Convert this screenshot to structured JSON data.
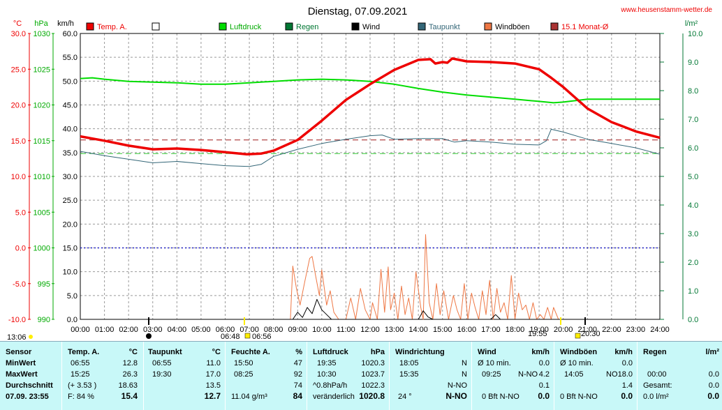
{
  "header": {
    "title": "Dienstag, 07.09.2021",
    "site": "www.heusenstamm-wetter.de"
  },
  "axes": {
    "celsius_unit": "°C",
    "hpa_unit": "hPa",
    "kmh_unit": "km/h",
    "rain_unit": "l/m²",
    "celsius_ticks": [
      "30.0",
      "25.0",
      "20.0",
      "15.0",
      "10.0",
      "5.0",
      "0.0",
      "-5.0",
      "-10.0"
    ],
    "hpa_ticks": [
      "1030",
      "1025",
      "1020",
      "1015",
      "1010",
      "1005",
      "1000",
      "995",
      "990"
    ],
    "kmh_ticks": [
      "60.0",
      "55.0",
      "50.0",
      "45.0",
      "40.0",
      "35.0",
      "30.0",
      "25.0",
      "20.0",
      "15.0",
      "10.0",
      "5.0",
      "0.0"
    ],
    "rain_ticks": [
      "10.0",
      "9.0",
      "8.0",
      "7.0",
      "6.0",
      "5.0",
      "4.0",
      "3.0",
      "2.0",
      "1.0",
      "0.0"
    ],
    "time_ticks": [
      "00:00",
      "01:00",
      "02:00",
      "03:00",
      "04:00",
      "05:00",
      "06:00",
      "07:00",
      "08:00",
      "09:00",
      "10:00",
      "11:00",
      "12:00",
      "13:00",
      "14:00",
      "15:00",
      "16:00",
      "17:00",
      "18:00",
      "19:00",
      "20:00",
      "21:00",
      "22:00",
      "23:00",
      "24:00"
    ],
    "sun_moon": [
      "13:06",
      "06:48",
      "06:56",
      "19:55",
      "20:30"
    ]
  },
  "legend": [
    {
      "label": "Temp. A.",
      "color": "#ee0000"
    },
    {
      "label": "",
      "color": "#ffffff"
    },
    {
      "label": "Luftdruck",
      "color": "#00dd00"
    },
    {
      "label": "Regen",
      "color": "#007733"
    },
    {
      "label": "Wind",
      "color": "#000000"
    },
    {
      "label": "Taupunkt",
      "color": "#336677"
    },
    {
      "label": "Windböen",
      "color": "#ee7744"
    },
    {
      "label": "15.1 Monat-Ø",
      "color": "#aa3333"
    }
  ],
  "chart_data": {
    "type": "line",
    "title": "Dienstag, 07.09.2021",
    "x_unit": "hour",
    "xlim": [
      0,
      24
    ],
    "series": [
      {
        "name": "Temp. A.",
        "axis": "celsius",
        "ylim": [
          -10,
          30
        ],
        "color": "#ee0000",
        "x": [
          0,
          1,
          2,
          3,
          4,
          5,
          6,
          6.9,
          7.5,
          8,
          9,
          10,
          11,
          12,
          13,
          14,
          14.5,
          14.7,
          15,
          15.2,
          15.4,
          16,
          17,
          18,
          19,
          19.5,
          20,
          21,
          22,
          23,
          24
        ],
        "y": [
          15.6,
          15.0,
          14.3,
          13.8,
          13.9,
          13.7,
          13.4,
          13.1,
          13.2,
          13.6,
          15.1,
          17.8,
          20.7,
          22.9,
          24.9,
          26.3,
          26.4,
          25.8,
          26.0,
          25.9,
          26.5,
          26.1,
          26.0,
          25.8,
          25.0,
          23.8,
          22.5,
          19.5,
          17.6,
          16.3,
          15.4
        ]
      },
      {
        "name": "Taupunkt",
        "axis": "celsius",
        "ylim": [
          -10,
          30
        ],
        "color": "#336677",
        "x": [
          0,
          1,
          2,
          3,
          4,
          5,
          6,
          7,
          7.5,
          8,
          9,
          10,
          11,
          12,
          12.5,
          13,
          14,
          15,
          15.5,
          16,
          17,
          18,
          19,
          19.3,
          19.5,
          20,
          21,
          22,
          23,
          24
        ],
        "y": [
          13.5,
          12.9,
          12.4,
          11.9,
          12.1,
          11.8,
          11.5,
          11.4,
          11.7,
          12.8,
          13.8,
          14.6,
          15.2,
          15.7,
          15.8,
          15.2,
          15.3,
          15.3,
          14.8,
          15.0,
          14.8,
          14.5,
          14.4,
          15.0,
          16.6,
          16.2,
          15.2,
          14.6,
          14.0,
          13.1
        ]
      },
      {
        "name": "Luftdruck",
        "axis": "hPa",
        "ylim": [
          990,
          1030
        ],
        "color": "#00dd00",
        "x": [
          0,
          0.5,
          1,
          2,
          3,
          4,
          5,
          6,
          7,
          8,
          9,
          10,
          11,
          12,
          13,
          14,
          15,
          16,
          17,
          18,
          19,
          19.6,
          20,
          21,
          22,
          23,
          24
        ],
        "y": [
          1023.7,
          1023.8,
          1023.6,
          1023.3,
          1023.2,
          1023.1,
          1022.9,
          1022.9,
          1023.1,
          1023.3,
          1023.5,
          1023.6,
          1023.5,
          1023.3,
          1022.9,
          1022.3,
          1021.8,
          1021.4,
          1021.1,
          1020.8,
          1020.5,
          1020.3,
          1020.4,
          1020.8,
          1020.8,
          1020.8,
          1020.8
        ]
      },
      {
        "name": "Wind",
        "axis": "kmh",
        "ylim": [
          0,
          60
        ],
        "color": "#000000",
        "x": [
          0,
          8.8,
          9.0,
          9.2,
          9.4,
          9.6,
          9.8,
          10.0,
          10.2,
          10.4,
          14.0,
          14.2,
          14.4,
          14.6,
          17.0,
          17.2,
          17.4,
          24
        ],
        "y": [
          0,
          0,
          1.5,
          0.4,
          2.5,
          1.2,
          4.2,
          2.0,
          1.0,
          0,
          0,
          1.8,
          0.5,
          0,
          0,
          1.0,
          0,
          0
        ]
      },
      {
        "name": "Windböen",
        "axis": "kmh",
        "ylim": [
          0,
          60
        ],
        "color": "#ee7744",
        "x": [
          0,
          8.7,
          8.8,
          8.95,
          9.1,
          9.3,
          9.5,
          9.6,
          9.75,
          9.9,
          10.0,
          10.2,
          10.35,
          10.5,
          10.7,
          11.0,
          11.2,
          11.4,
          11.6,
          11.8,
          12.0,
          12.1,
          12.3,
          12.45,
          12.6,
          12.75,
          12.85,
          13.0,
          13.15,
          13.3,
          13.45,
          13.6,
          13.75,
          13.9,
          14.1,
          14.2,
          14.3,
          14.45,
          14.6,
          14.75,
          14.9,
          15.05,
          15.25,
          15.45,
          15.6,
          15.75,
          15.9,
          16.05,
          16.2,
          16.35,
          16.5,
          16.65,
          16.8,
          16.95,
          17.1,
          17.25,
          17.4,
          17.55,
          17.7,
          17.85,
          18.0,
          18.15,
          18.3,
          18.45,
          18.6,
          18.75,
          18.9,
          19.05,
          19.2,
          19.35,
          19.5,
          19.6,
          19.8,
          24
        ],
        "y": [
          0,
          0,
          11.2,
          6.5,
          3.0,
          8.0,
          12.8,
          13.2,
          9.0,
          5.0,
          10.4,
          3.0,
          6.0,
          1.5,
          0,
          0,
          4.5,
          0,
          6.5,
          2.0,
          0,
          3.5,
          0,
          10.5,
          1.5,
          11.0,
          2.0,
          5.5,
          0,
          7.0,
          1.0,
          4.5,
          0,
          10.0,
          2.5,
          0,
          17.8,
          3.5,
          0,
          7.5,
          1.0,
          6.0,
          0,
          5.0,
          2.0,
          0,
          7.5,
          0,
          5.5,
          2.5,
          0,
          6.0,
          1.0,
          8.2,
          0,
          6.5,
          1.5,
          3.5,
          0,
          9.2,
          0,
          5.5,
          2.0,
          3.0,
          0,
          3.5,
          0,
          1.0,
          0,
          2.5,
          0,
          2.5,
          0,
          0
        ]
      },
      {
        "name": "15.1 Monat-Ø",
        "axis": "celsius",
        "ylim": [
          -10,
          30
        ],
        "color": "#aa3333",
        "style": "dashed",
        "x": [
          0,
          24
        ],
        "y": [
          15.1,
          15.1
        ]
      },
      {
        "name": "",
        "axis": "hPa",
        "ylim": [
          990,
          1030
        ],
        "color": "#33cc33",
        "style": "dashed",
        "x": [
          0,
          24
        ],
        "y": [
          1013.2,
          1013.2
        ]
      },
      {
        "name": "",
        "axis": "celsius",
        "ylim": [
          -10,
          30
        ],
        "color": "#2222cc",
        "style": "dotted",
        "x": [
          0,
          24
        ],
        "y": [
          0,
          0
        ]
      }
    ]
  },
  "panel": {
    "rows": [
      "Sensor",
      "MinWert",
      "MaxWert",
      "Durchschnitt",
      "07.09. 23:55"
    ],
    "temp": {
      "title": "Temp. A.",
      "unit": "°C",
      "min_time": "06:55",
      "min": "12.8",
      "max_time": "15:25",
      "max": "26.3",
      "avg_diff": "(+ 3.53 )",
      "avg": "18.63",
      "feel": "F: 84 %",
      "current": "15.4"
    },
    "taupunkt": {
      "title": "Taupunkt",
      "unit": "°C",
      "min_time": "06:55",
      "min": "11.0",
      "max_time": "19:30",
      "max": "17.0",
      "avg": "13.5",
      "current": "12.7"
    },
    "feuchte": {
      "title": "Feuchte A.",
      "unit": "%",
      "min_time": "15:50",
      "min": "47",
      "max_time": "08:25",
      "max": "92",
      "avg": "74",
      "abs": "11.04 g/m³",
      "current": "84"
    },
    "luftdruck": {
      "title": "Luftdruck",
      "unit": "hPa",
      "min_time": "19:35",
      "min": "1020.3",
      "max_time": "10:30",
      "max": "1023.7",
      "trend": "^0.8hPa/h",
      "avg": "1022.3",
      "forecast": "veränderlich",
      "current": "1020.8"
    },
    "windrichtung": {
      "title": "Windrichtung",
      "min_time": "18:05",
      "min": "N",
      "max_time": "15:35",
      "max": "N",
      "avg": "N-NO",
      "deg": "24 °",
      "current": "N-NO"
    },
    "wind": {
      "title": "Wind",
      "unit": "km/h",
      "min_label": "Ø 10 min.",
      "min": "0.0",
      "max_time": "09:25",
      "max_dir": "N-NO",
      "max": "4.2",
      "avg": "0.1",
      "bft": "0 Bft N-NO",
      "current": "0.0"
    },
    "windboeen": {
      "title": "Windböen",
      "unit": "km/h",
      "min_label": "Ø 10 min.",
      "min": "0.0",
      "max_time": "14:05",
      "max_dir": "NO",
      "max": "18.0",
      "avg": "1.4",
      "bft": "0 Bft N-NO",
      "current": "0.0"
    },
    "regen": {
      "title": "Regen",
      "unit": "l/m²",
      "min_time": "00:00",
      "min": "0.0",
      "gesamt_label": "Gesamt:",
      "gesamt": "0.0",
      "rate": "0.0 l/m²",
      "current": "0.0"
    }
  }
}
